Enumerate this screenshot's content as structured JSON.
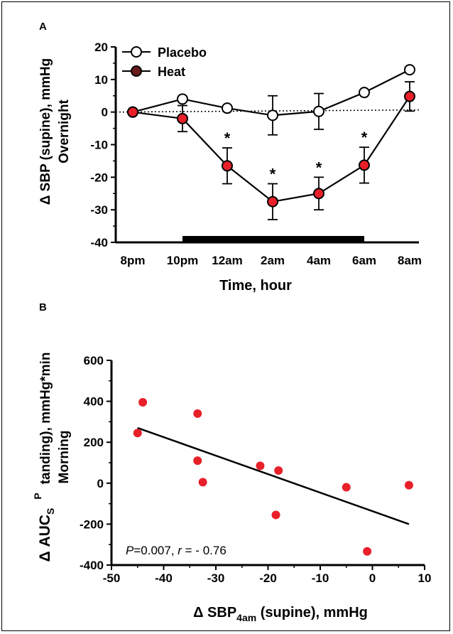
{
  "colors": {
    "heat": "#e8202a",
    "heat_legend": "#6b1a1a",
    "placebo": "#ffffff",
    "line": "#000000"
  },
  "chart_data": [
    {
      "panel": "A",
      "type": "line",
      "ylabel_line1": "Δ SBP (supine), mmHg",
      "ylabel_line2": "Overnight",
      "xlabel": "Time, hour",
      "categories": [
        "8pm",
        "10pm",
        "12am",
        "2am",
        "4am",
        "6am",
        "8am"
      ],
      "ylim": [
        -40,
        20
      ],
      "yticks": [
        "20",
        "10",
        "0",
        "-10",
        "-20",
        "-30",
        "-40"
      ],
      "yticks_values": [
        20,
        10,
        0,
        -10,
        -20,
        -30,
        -40
      ],
      "legend_position": "top-left",
      "reference_line_y": 0,
      "heat_period": [
        "10pm",
        "6am"
      ],
      "series": [
        {
          "name": "Placebo",
          "values": [
            0,
            4,
            1.2,
            -1,
            0.2,
            6,
            13
          ],
          "error": [
            0,
            0,
            0,
            6,
            5.5,
            0,
            0
          ],
          "fill": "white"
        },
        {
          "name": "Heat",
          "values": [
            0,
            -2,
            -16.5,
            -27.5,
            -25,
            -16.3,
            4.8
          ],
          "error": [
            0,
            4,
            5.5,
            5.5,
            5,
            5.5,
            4.5
          ],
          "fill": "red"
        }
      ],
      "significance_marker": "*",
      "significant_categories": [
        "12am",
        "2am",
        "4am",
        "6am"
      ]
    },
    {
      "panel": "B",
      "type": "scatter",
      "ylabel_part1": "Δ AUC",
      "ylabel_sub_s": "S",
      "ylabel_sub_p": "P",
      "ylabel_part2": "tanding), mmHg*min",
      "ylabel_line2": "Morning",
      "xlabel_part1": "Δ SBP",
      "xlabel_sub": "4am",
      "xlabel_part2": " (supine), mmHg",
      "xlim": [
        -50,
        10
      ],
      "ylim": [
        -400,
        600
      ],
      "xticks": [
        "-50",
        "-40",
        "-30",
        "-20",
        "-10",
        "0",
        "10"
      ],
      "xticks_values": [
        -50,
        -40,
        -30,
        -20,
        -10,
        0,
        10
      ],
      "yticks": [
        "600",
        "400",
        "200",
        "0",
        "-200",
        "-400"
      ],
      "yticks_values": [
        600,
        400,
        200,
        0,
        -200,
        -400
      ],
      "points": [
        {
          "x": -44,
          "y": 395
        },
        {
          "x": -45,
          "y": 245
        },
        {
          "x": -33.5,
          "y": 340
        },
        {
          "x": -33.5,
          "y": 110
        },
        {
          "x": -32.5,
          "y": 5
        },
        {
          "x": -21.5,
          "y": 85
        },
        {
          "x": -18,
          "y": 62
        },
        {
          "x": -18.5,
          "y": -155
        },
        {
          "x": -5,
          "y": -20
        },
        {
          "x": -1,
          "y": -333
        },
        {
          "x": 7,
          "y": -10
        }
      ],
      "regression": {
        "x": [
          -45,
          7
        ],
        "y": [
          270,
          -200
        ]
      },
      "annotation": {
        "p_label": "P",
        "p_value": "=0.007, ",
        "r_label": "r",
        "r_value": " = - 0.76"
      }
    }
  ]
}
